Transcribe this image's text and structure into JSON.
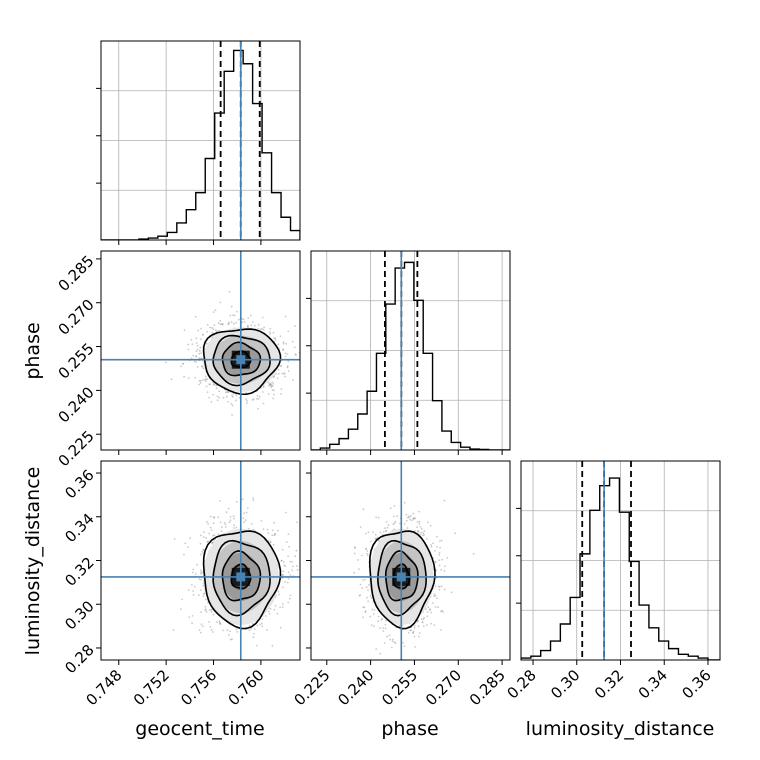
{
  "figure": {
    "type": "corner_plot",
    "parameters": [
      "geocent_time",
      "phase",
      "luminosity_distance"
    ]
  },
  "chart_data": [
    {
      "type": "histogram",
      "panel": "geocent_time-marginal",
      "xlabel": "",
      "xlim": [
        0.7465,
        0.7633
      ],
      "x_ticks": [
        "0.748",
        "0.752",
        "0.756",
        "0.760"
      ],
      "x_tick_values": [
        0.748,
        0.752,
        0.756,
        0.76
      ],
      "y_tick_labels": "none",
      "grid": true,
      "bins": [
        0.7465,
        0.7473,
        0.7481,
        0.7489,
        0.7497,
        0.7505,
        0.7513,
        0.7521,
        0.7529,
        0.7537,
        0.7545,
        0.7553,
        0.7561,
        0.7569,
        0.7577,
        0.7585,
        0.7593,
        0.7601,
        0.7609,
        0.7617,
        0.7625,
        0.7633
      ],
      "counts": [
        0,
        0,
        0,
        0,
        0.005,
        0.01,
        0.02,
        0.04,
        0.09,
        0.16,
        0.25,
        0.43,
        0.67,
        0.89,
        1.0,
        0.93,
        0.72,
        0.46,
        0.25,
        0.12,
        0.05
      ],
      "quantiles": [
        0.7566,
        0.7583,
        0.7599
      ],
      "truth": 0.7583,
      "truth_color": "#4682b4"
    },
    {
      "type": "scatter_density",
      "panel": "phase-vs-geocent_time",
      "xlabel": "",
      "ylabel": "phase",
      "xlim": [
        0.7465,
        0.7633
      ],
      "ylim": [
        0.2196,
        0.2877
      ],
      "y_ticks": [
        "0.225",
        "0.240",
        "0.255",
        "0.270",
        "0.285"
      ],
      "y_tick_values": [
        0.225,
        0.24,
        0.255,
        0.27,
        0.285
      ],
      "center": [
        0.7583,
        0.2505
      ],
      "spread": [
        0.0016,
        0.0055
      ],
      "contour_levels": [
        0.5,
        1.0,
        1.5,
        2.0
      ],
      "truth": [
        0.7583,
        0.2505
      ],
      "truth_color": "#4682b4"
    },
    {
      "type": "histogram",
      "panel": "phase-marginal",
      "xlabel": "",
      "xlim": [
        0.2196,
        0.2877
      ],
      "y_tick_labels": "none",
      "grid": true,
      "bins": [
        0.2196,
        0.2228,
        0.226,
        0.2292,
        0.2324,
        0.2356,
        0.2388,
        0.242,
        0.2452,
        0.2484,
        0.2516,
        0.2548,
        0.258,
        0.2612,
        0.2644,
        0.2676,
        0.2708,
        0.274,
        0.2772,
        0.2804,
        0.2836,
        0.2877
      ],
      "counts": [
        0,
        0.01,
        0.03,
        0.06,
        0.11,
        0.19,
        0.31,
        0.51,
        0.77,
        0.96,
        0.99,
        0.79,
        0.51,
        0.26,
        0.1,
        0.04,
        0.015,
        0.005,
        0.003,
        0,
        0
      ],
      "quantiles": [
        0.2449,
        0.2505,
        0.256
      ],
      "truth": 0.2505,
      "truth_color": "#4682b4"
    },
    {
      "type": "scatter_density",
      "panel": "luminosity_distance-vs-geocent_time",
      "xlabel": "geocent_time",
      "ylabel": "luminosity_distance",
      "xlim": [
        0.7465,
        0.7633
      ],
      "ylim": [
        0.2745,
        0.3655
      ],
      "x_ticks": [
        "0.748",
        "0.752",
        "0.756",
        "0.760"
      ],
      "x_tick_values": [
        0.748,
        0.752,
        0.756,
        0.76
      ],
      "y_ticks": [
        "0.28",
        "0.30",
        "0.32",
        "0.34",
        "0.36"
      ],
      "y_tick_values": [
        0.28,
        0.3,
        0.32,
        0.34,
        0.36
      ],
      "center": [
        0.7583,
        0.3125
      ],
      "spread": [
        0.0016,
        0.011
      ],
      "contour_levels": [
        0.5,
        1.0,
        1.5,
        2.0
      ],
      "truth": [
        0.7583,
        0.3125
      ],
      "truth_color": "#4682b4"
    },
    {
      "type": "scatter_density",
      "panel": "luminosity_distance-vs-phase",
      "xlabel": "phase",
      "ylabel": "",
      "xlim": [
        0.2196,
        0.2877
      ],
      "ylim": [
        0.2745,
        0.3655
      ],
      "x_ticks": [
        "0.225",
        "0.240",
        "0.255",
        "0.270",
        "0.285"
      ],
      "x_tick_values": [
        0.225,
        0.24,
        0.255,
        0.27,
        0.285
      ],
      "center": [
        0.2505,
        0.3125
      ],
      "spread": [
        0.0055,
        0.011
      ],
      "contour_levels": [
        0.5,
        1.0,
        1.5,
        2.0
      ],
      "truth": [
        0.2505,
        0.3125
      ],
      "truth_color": "#4682b4"
    },
    {
      "type": "histogram",
      "panel": "luminosity_distance-marginal",
      "xlabel": "luminosity_distance",
      "xlim": [
        0.2745,
        0.3655
      ],
      "x_ticks": [
        "0.28",
        "0.30",
        "0.32",
        "0.34",
        "0.36"
      ],
      "x_tick_values": [
        0.28,
        0.3,
        0.32,
        0.34,
        0.36
      ],
      "y_tick_labels": "none",
      "grid": true,
      "bins": [
        0.2745,
        0.279,
        0.2835,
        0.288,
        0.2925,
        0.297,
        0.3015,
        0.306,
        0.3105,
        0.315,
        0.3195,
        0.324,
        0.3285,
        0.333,
        0.3375,
        0.342,
        0.3465,
        0.351,
        0.3555,
        0.36,
        0.3655
      ],
      "counts": [
        0.01,
        0.02,
        0.05,
        0.1,
        0.19,
        0.33,
        0.56,
        0.79,
        0.92,
        0.96,
        0.78,
        0.52,
        0.29,
        0.17,
        0.1,
        0.06,
        0.03,
        0.02,
        0.01,
        0
      ],
      "quantiles": [
        0.3025,
        0.3125,
        0.3248
      ],
      "truth": 0.3125,
      "truth_color": "#4682b4"
    }
  ]
}
